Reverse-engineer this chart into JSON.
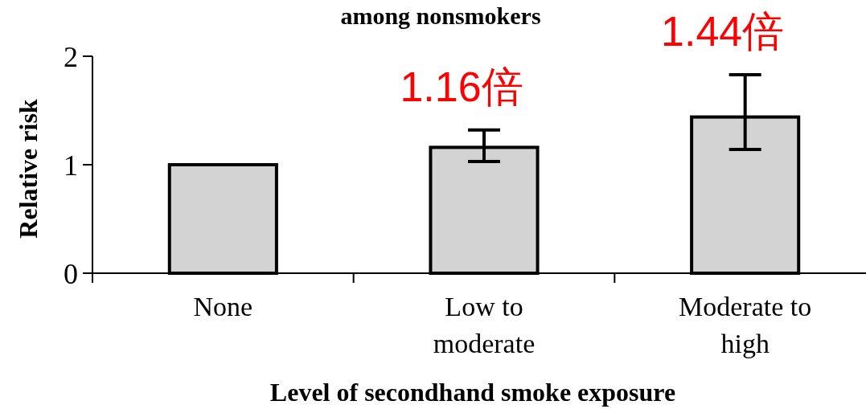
{
  "chart_data": {
    "type": "bar",
    "title": "among nonsmokers",
    "xlabel": "Level of secondhand smoke exposure",
    "ylabel": "Relative risk",
    "categories": [
      "None",
      "Low to moderate",
      "Moderate to high"
    ],
    "values": [
      1,
      1.16,
      1.44
    ],
    "color": "#d3d3d3",
    "errors": [
      null,
      [
        1.03,
        1.32
      ],
      [
        1.14,
        1.83
      ]
    ],
    "value_labels": [
      null,
      "1.16倍",
      "1.44倍"
    ],
    "ylim": [
      0,
      2
    ],
    "yticks": [
      0,
      1,
      2
    ],
    "grid": false
  }
}
